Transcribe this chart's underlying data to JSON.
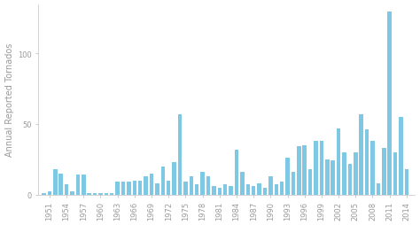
{
  "years": [
    1950,
    1951,
    1952,
    1953,
    1954,
    1955,
    1956,
    1957,
    1958,
    1959,
    1960,
    1961,
    1962,
    1963,
    1964,
    1965,
    1966,
    1967,
    1968,
    1969,
    1970,
    1971,
    1972,
    1973,
    1974,
    1975,
    1976,
    1977,
    1978,
    1979,
    1980,
    1981,
    1982,
    1983,
    1984,
    1985,
    1986,
    1987,
    1988,
    1989,
    1990,
    1991,
    1992,
    1993,
    1994,
    1995,
    1996,
    1997,
    1998,
    1999,
    2000,
    2001,
    2002,
    2003,
    2004,
    2005,
    2006,
    2007,
    2008,
    2009,
    2010,
    2011,
    2012,
    2013,
    2014
  ],
  "values": [
    1,
    2,
    18,
    15,
    7,
    2,
    14,
    14,
    1,
    1,
    1,
    1,
    1,
    9,
    9,
    9,
    10,
    10,
    13,
    15,
    8,
    20,
    10,
    23,
    57,
    9,
    13,
    7,
    16,
    13,
    6,
    5,
    7,
    6,
    32,
    16,
    7,
    6,
    8,
    5,
    13,
    7,
    9,
    26,
    16,
    34,
    35,
    18,
    38,
    38,
    25,
    24,
    47,
    30,
    22,
    30,
    57,
    46,
    38,
    8,
    33,
    130,
    30,
    55,
    18
  ],
  "bar_color": "#7ec8e3",
  "ylabel": "Annual Reported Tornados",
  "yticks": [
    0,
    50,
    100
  ],
  "xtick_years": [
    1951,
    1954,
    1957,
    1960,
    1963,
    1966,
    1969,
    1972,
    1975,
    1978,
    1981,
    1984,
    1987,
    1990,
    1993,
    1996,
    1999,
    2002,
    2005,
    2008,
    2011,
    2014
  ],
  "background_color": "#ffffff",
  "spine_color": "#cccccc",
  "tick_color": "#999999",
  "label_fontsize": 7.0,
  "tick_fontsize": 6.0,
  "bar_width": 0.7,
  "xlim_left": 1949.0,
  "xlim_right": 2015.5,
  "ylim_top": 135
}
